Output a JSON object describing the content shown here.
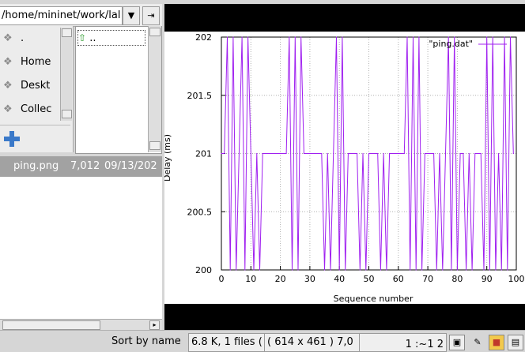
{
  "path_field": {
    "value": "/home/mininet/work/lal"
  },
  "path_buttons": {
    "dropdown": "▼",
    "goto": "⇥"
  },
  "places": [
    {
      "label": ".",
      "icon": "folder-icon"
    },
    {
      "label": "Home",
      "icon": "folder-icon"
    },
    {
      "label": "Deskt",
      "icon": "folder-icon"
    },
    {
      "label": "Collec",
      "icon": "folder-icon"
    }
  ],
  "add_button": {
    "icon": "plus-icon"
  },
  "dirlist": {
    "parent_label": "..",
    "icon": "up-arrow-icon"
  },
  "file_row": {
    "name": "ping.png",
    "size": "7,012",
    "date": "09/13/202"
  },
  "status": {
    "sort": "Sort by name",
    "files": "6.8 K, 1 files (",
    "dims": "( 614 x 461 ) 7,0",
    "zoom": "1 :~1 2"
  },
  "colors": {
    "series": "#a020f0",
    "selection": "#a2a2a2"
  },
  "chart_data": {
    "type": "line",
    "xlabel": "Sequence number",
    "ylabel": "Delay (ms)",
    "xlim": [
      0,
      100
    ],
    "ylim": [
      200,
      202
    ],
    "xticks": [
      "0",
      "10",
      "20",
      "30",
      "40",
      "50",
      "60",
      "70",
      "80",
      "90",
      "100"
    ],
    "yticks": [
      "200",
      "200.5",
      "201",
      "201.5",
      "202"
    ],
    "legend": "\"ping.dat\"",
    "legend_position": "top-right",
    "grid": true,
    "series": [
      {
        "name": "\"ping.dat\"",
        "x": [
          0,
          1,
          2,
          3,
          4,
          5,
          6,
          7,
          8,
          9,
          10,
          11,
          12,
          13,
          14,
          15,
          16,
          17,
          18,
          19,
          20,
          21,
          22,
          23,
          24,
          25,
          26,
          27,
          28,
          29,
          30,
          31,
          32,
          33,
          34,
          35,
          36,
          37,
          38,
          39,
          40,
          41,
          42,
          43,
          44,
          45,
          46,
          47,
          48,
          49,
          50,
          51,
          52,
          53,
          54,
          55,
          56,
          57,
          58,
          59,
          60,
          61,
          62,
          63,
          64,
          65,
          66,
          67,
          68,
          69,
          70,
          71,
          72,
          73,
          74,
          75,
          76,
          77,
          78,
          79,
          80,
          81,
          82,
          83,
          84,
          85,
          86,
          87,
          88,
          89,
          90,
          91,
          92,
          93,
          94,
          95,
          96,
          97,
          98,
          99
        ],
        "y": [
          201,
          201,
          202,
          200,
          202,
          200,
          201,
          202,
          200,
          202,
          201,
          200,
          201,
          200,
          201,
          201,
          201,
          201,
          201,
          201,
          201,
          201,
          201,
          202,
          200,
          202,
          200,
          202,
          201,
          201,
          201,
          201,
          201,
          201,
          201,
          200,
          201,
          200,
          201,
          202,
          200,
          202,
          200,
          201,
          201,
          201,
          201,
          200,
          201,
          200,
          201,
          201,
          201,
          201,
          200,
          201,
          200,
          201,
          201,
          201,
          201,
          201,
          201,
          202,
          200,
          202,
          200,
          202,
          200,
          201,
          201,
          201,
          201,
          200,
          201,
          200,
          201,
          202,
          200,
          202,
          200,
          201,
          201,
          200,
          201,
          200,
          201,
          201,
          201,
          200,
          202,
          200,
          202,
          200,
          201,
          200,
          202,
          200,
          202,
          201
        ]
      }
    ]
  }
}
